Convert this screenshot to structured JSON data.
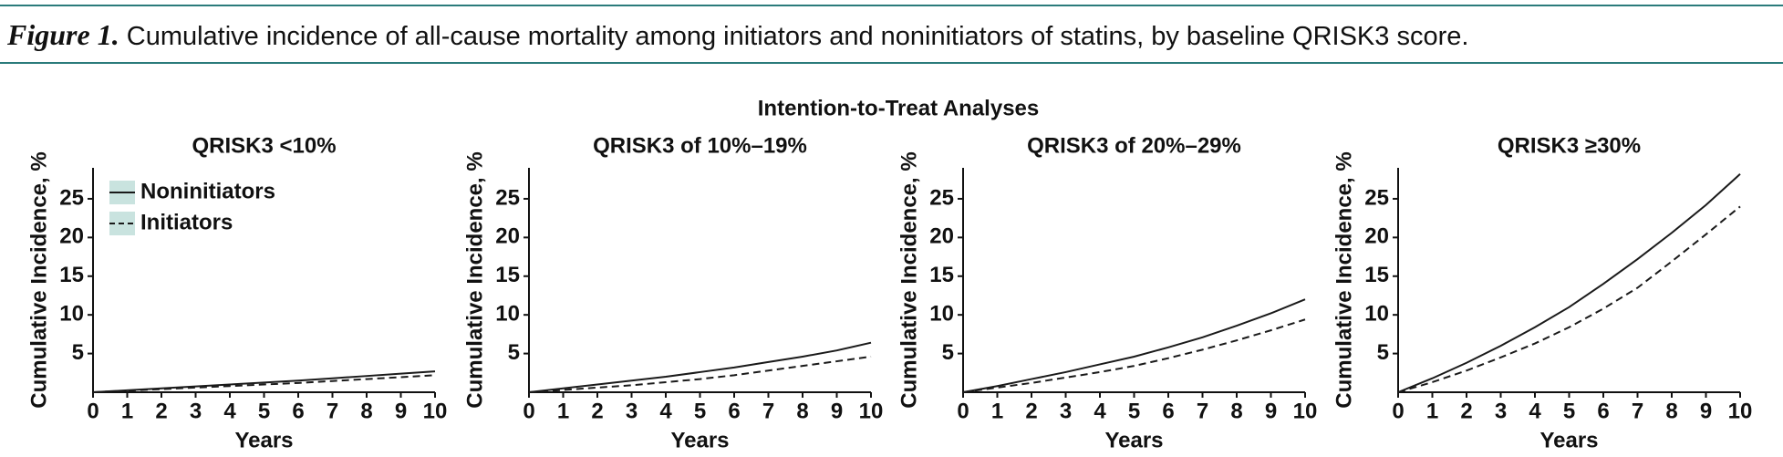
{
  "figure": {
    "label": "Figure 1.",
    "caption": "Cumulative incidence of all-cause mortality among initiators and noninitiators of statins, by baseline QRISK3 score."
  },
  "heading": "Intention-to-Treat Analyses",
  "chart_data": [
    {
      "type": "line",
      "title": "QRISK3 <10%",
      "x_label": "Years",
      "y_label": "Cumulative Incidence, %",
      "x": [
        0,
        1,
        2,
        3,
        4,
        5,
        6,
        7,
        8,
        9,
        10
      ],
      "xlim": [
        0,
        10
      ],
      "xticks": [
        0,
        1,
        2,
        3,
        4,
        5,
        6,
        7,
        8,
        9,
        10
      ],
      "ylim": [
        0,
        29
      ],
      "yticks": [
        5,
        10,
        15,
        20,
        25
      ],
      "legend": "upper left",
      "band_color": "#c9e3df",
      "series": [
        {
          "name": "Noninitiators",
          "color": "#1a1a1a",
          "line_style": "solid",
          "values": [
            0,
            0.25,
            0.5,
            0.75,
            1.0,
            1.25,
            1.5,
            1.8,
            2.1,
            2.4,
            2.7
          ]
        },
        {
          "name": "Initiators",
          "color": "#1a1a1a",
          "line_style": "dashed",
          "values": [
            0,
            0.2,
            0.4,
            0.6,
            0.8,
            1.0,
            1.2,
            1.45,
            1.7,
            1.95,
            2.2
          ]
        }
      ]
    },
    {
      "type": "line",
      "title": "QRISK3 of 10%–19%",
      "x_label": "Years",
      "y_label": "Cumulative Incidence, %",
      "x": [
        0,
        1,
        2,
        3,
        4,
        5,
        6,
        7,
        8,
        9,
        10
      ],
      "xlim": [
        0,
        10
      ],
      "xticks": [
        0,
        1,
        2,
        3,
        4,
        5,
        6,
        7,
        8,
        9,
        10
      ],
      "ylim": [
        0,
        29
      ],
      "yticks": [
        5,
        10,
        15,
        20,
        25
      ],
      "series": [
        {
          "name": "Noninitiators",
          "color": "#1a1a1a",
          "line_style": "solid",
          "values": [
            0,
            0.5,
            1.0,
            1.5,
            2.0,
            2.6,
            3.2,
            3.9,
            4.6,
            5.4,
            6.4
          ]
        },
        {
          "name": "Initiators",
          "color": "#1a1a1a",
          "line_style": "dashed",
          "values": [
            0,
            0.3,
            0.6,
            0.9,
            1.3,
            1.7,
            2.2,
            2.8,
            3.4,
            4.0,
            4.6
          ]
        }
      ]
    },
    {
      "type": "line",
      "title": "QRISK3 of 20%–29%",
      "x_label": "Years",
      "y_label": "Cumulative Incidence, %",
      "x": [
        0,
        1,
        2,
        3,
        4,
        5,
        6,
        7,
        8,
        9,
        10
      ],
      "xlim": [
        0,
        10
      ],
      "xticks": [
        0,
        1,
        2,
        3,
        4,
        5,
        6,
        7,
        8,
        9,
        10
      ],
      "ylim": [
        0,
        29
      ],
      "yticks": [
        5,
        10,
        15,
        20,
        25
      ],
      "series": [
        {
          "name": "Noninitiators",
          "color": "#1a1a1a",
          "line_style": "solid",
          "values": [
            0,
            0.8,
            1.7,
            2.6,
            3.6,
            4.6,
            5.8,
            7.1,
            8.6,
            10.2,
            12.0
          ]
        },
        {
          "name": "Initiators",
          "color": "#1a1a1a",
          "line_style": "dashed",
          "values": [
            0,
            0.6,
            1.2,
            1.9,
            2.6,
            3.4,
            4.4,
            5.5,
            6.7,
            8.0,
            9.4
          ]
        }
      ]
    },
    {
      "type": "line",
      "title": "QRISK3 ≥30%",
      "x_label": "Years",
      "y_label": "Cumulative Incidence, %",
      "x": [
        0,
        1,
        2,
        3,
        4,
        5,
        6,
        7,
        8,
        9,
        10
      ],
      "xlim": [
        0,
        10
      ],
      "xticks": [
        0,
        1,
        2,
        3,
        4,
        5,
        6,
        7,
        8,
        9,
        10
      ],
      "ylim": [
        0,
        29
      ],
      "yticks": [
        5,
        10,
        15,
        20,
        25
      ],
      "series": [
        {
          "name": "Noninitiators",
          "color": "#1a1a1a",
          "line_style": "solid",
          "values": [
            0,
            1.8,
            3.8,
            6.0,
            8.4,
            11.0,
            14.0,
            17.2,
            20.6,
            24.2,
            28.2
          ]
        },
        {
          "name": "Initiators",
          "color": "#1a1a1a",
          "line_style": "dashed",
          "values": [
            0,
            1.3,
            2.8,
            4.5,
            6.3,
            8.4,
            10.8,
            13.5,
            16.9,
            20.4,
            24.0
          ]
        }
      ]
    }
  ]
}
